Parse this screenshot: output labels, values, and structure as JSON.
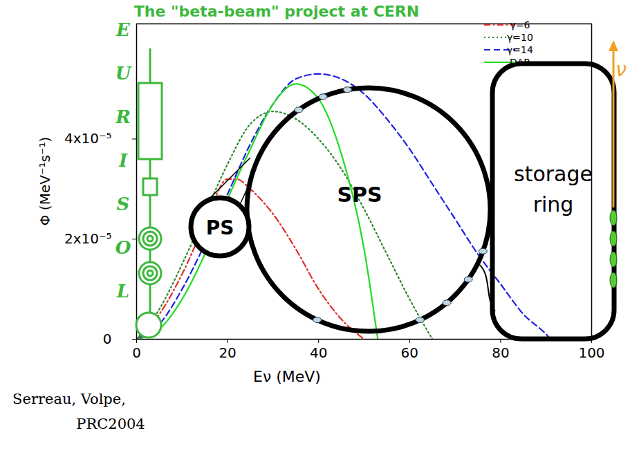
{
  "chart_data": {
    "type": "line",
    "title": "The \"beta-beam\" project at CERN",
    "xlabel": "Eν (MeV)",
    "ylabel": "Φ (MeV⁻¹s⁻¹)",
    "xlim": [
      0,
      100
    ],
    "xticks": [
      0,
      20,
      40,
      60,
      80,
      100
    ],
    "ylim": [
      0,
      6.3e-05
    ],
    "yticks": [
      0,
      {
        "value": 2e-05,
        "label": "2x10⁻⁵"
      },
      {
        "value": 4e-05,
        "label": "4x10⁻⁵"
      }
    ],
    "grid": false,
    "legend": "top-right",
    "series": [
      {
        "name": "γ=6",
        "color": "#e0302a",
        "line_style": "dashdot",
        "x": [
          0,
          5,
          10,
          15,
          20,
          22,
          25,
          30,
          35,
          40,
          45,
          50
        ],
        "values": [
          0,
          5e-06,
          1.3e-05,
          2.3e-05,
          3.2e-05,
          3.2e-05,
          3e-05,
          2.5e-05,
          1.8e-05,
          1e-05,
          4e-06,
          0
        ]
      },
      {
        "name": "γ=10",
        "color": "#2a8a2a",
        "line_style": "dotted",
        "x": [
          0,
          5,
          10,
          15,
          20,
          25,
          30,
          35,
          40,
          45,
          50,
          55,
          60,
          65
        ],
        "values": [
          0,
          6e-06,
          1.5e-05,
          2.5e-05,
          3.5e-05,
          4.3e-05,
          4.55e-05,
          4.4e-05,
          4e-05,
          3.4e-05,
          2.6e-05,
          1.7e-05,
          8e-06,
          0
        ]
      },
      {
        "name": "γ=14",
        "color": "#2020e0",
        "line_style": "dashed",
        "x": [
          0,
          5,
          10,
          15,
          20,
          25,
          30,
          35,
          40,
          45,
          50,
          55,
          60,
          65,
          70,
          75,
          80,
          85,
          90,
          91
        ],
        "values": [
          0,
          3e-06,
          1e-05,
          1.9e-05,
          2.9e-05,
          3.9e-05,
          4.7e-05,
          5.2e-05,
          5.3e-05,
          5.2e-05,
          4.9e-05,
          4.4e-05,
          3.8e-05,
          3.1e-05,
          2.4e-05,
          1.7e-05,
          1.1e-05,
          5e-06,
          1e-06,
          0
        ]
      },
      {
        "name": "DAR",
        "color": "#22dd22",
        "line_style": "solid",
        "x": [
          0,
          5,
          10,
          15,
          20,
          25,
          30,
          35,
          40,
          45,
          50,
          53
        ],
        "values": [
          0,
          2e-06,
          8e-06,
          1.7e-05,
          2.8e-05,
          3.8e-05,
          4.7e-05,
          5.1e-05,
          4.8e-05,
          3.7e-05,
          1.8e-05,
          0
        ]
      }
    ]
  },
  "diagram": {
    "eurisol": "EURISOL",
    "ps": "PS",
    "sps": "SPS",
    "storage_ring": [
      "storage",
      "ring"
    ],
    "neutrino": "ν",
    "citation": [
      "Serreau, Volpe,",
      "PRC2004"
    ]
  }
}
